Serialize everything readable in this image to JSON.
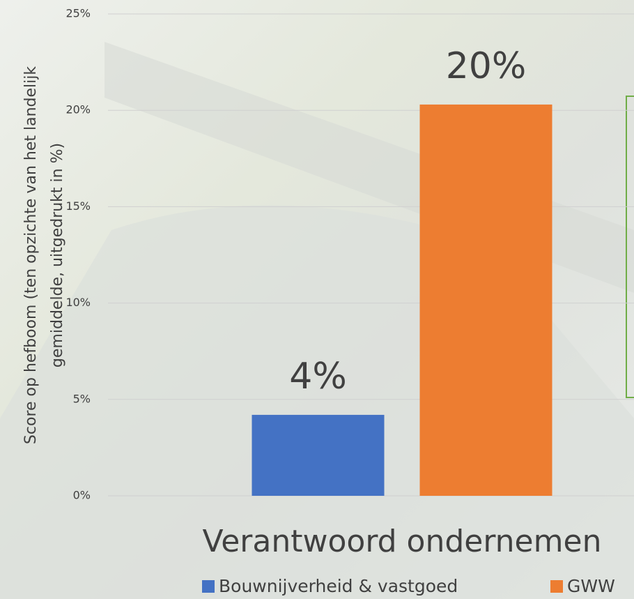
{
  "chart_data": {
    "type": "bar",
    "categories": [
      "Verantwoord ondernemen"
    ],
    "series": [
      {
        "name": "Bouwnijverheid & vastgoed",
        "color": "#4472c4",
        "values": [
          4.2
        ],
        "value_labels": [
          "4%"
        ]
      },
      {
        "name": "GWW",
        "color": "#ed7d31",
        "values": [
          20.3
        ],
        "value_labels": [
          "20%"
        ]
      }
    ],
    "ylabel": [
      "Score op hefboom (ten opzichte van het landelijk",
      "gemiddelde, uitgedrukt in %)"
    ],
    "ylim": [
      0,
      25
    ],
    "yticks": [
      {
        "value": 0,
        "label": "0%"
      },
      {
        "value": 5,
        "label": "5%"
      },
      {
        "value": 10,
        "label": "10%"
      },
      {
        "value": 15,
        "label": "15%"
      },
      {
        "value": 20,
        "label": "20%"
      },
      {
        "value": 25,
        "label": "25%"
      }
    ],
    "grid": true,
    "legend": "bottom"
  }
}
